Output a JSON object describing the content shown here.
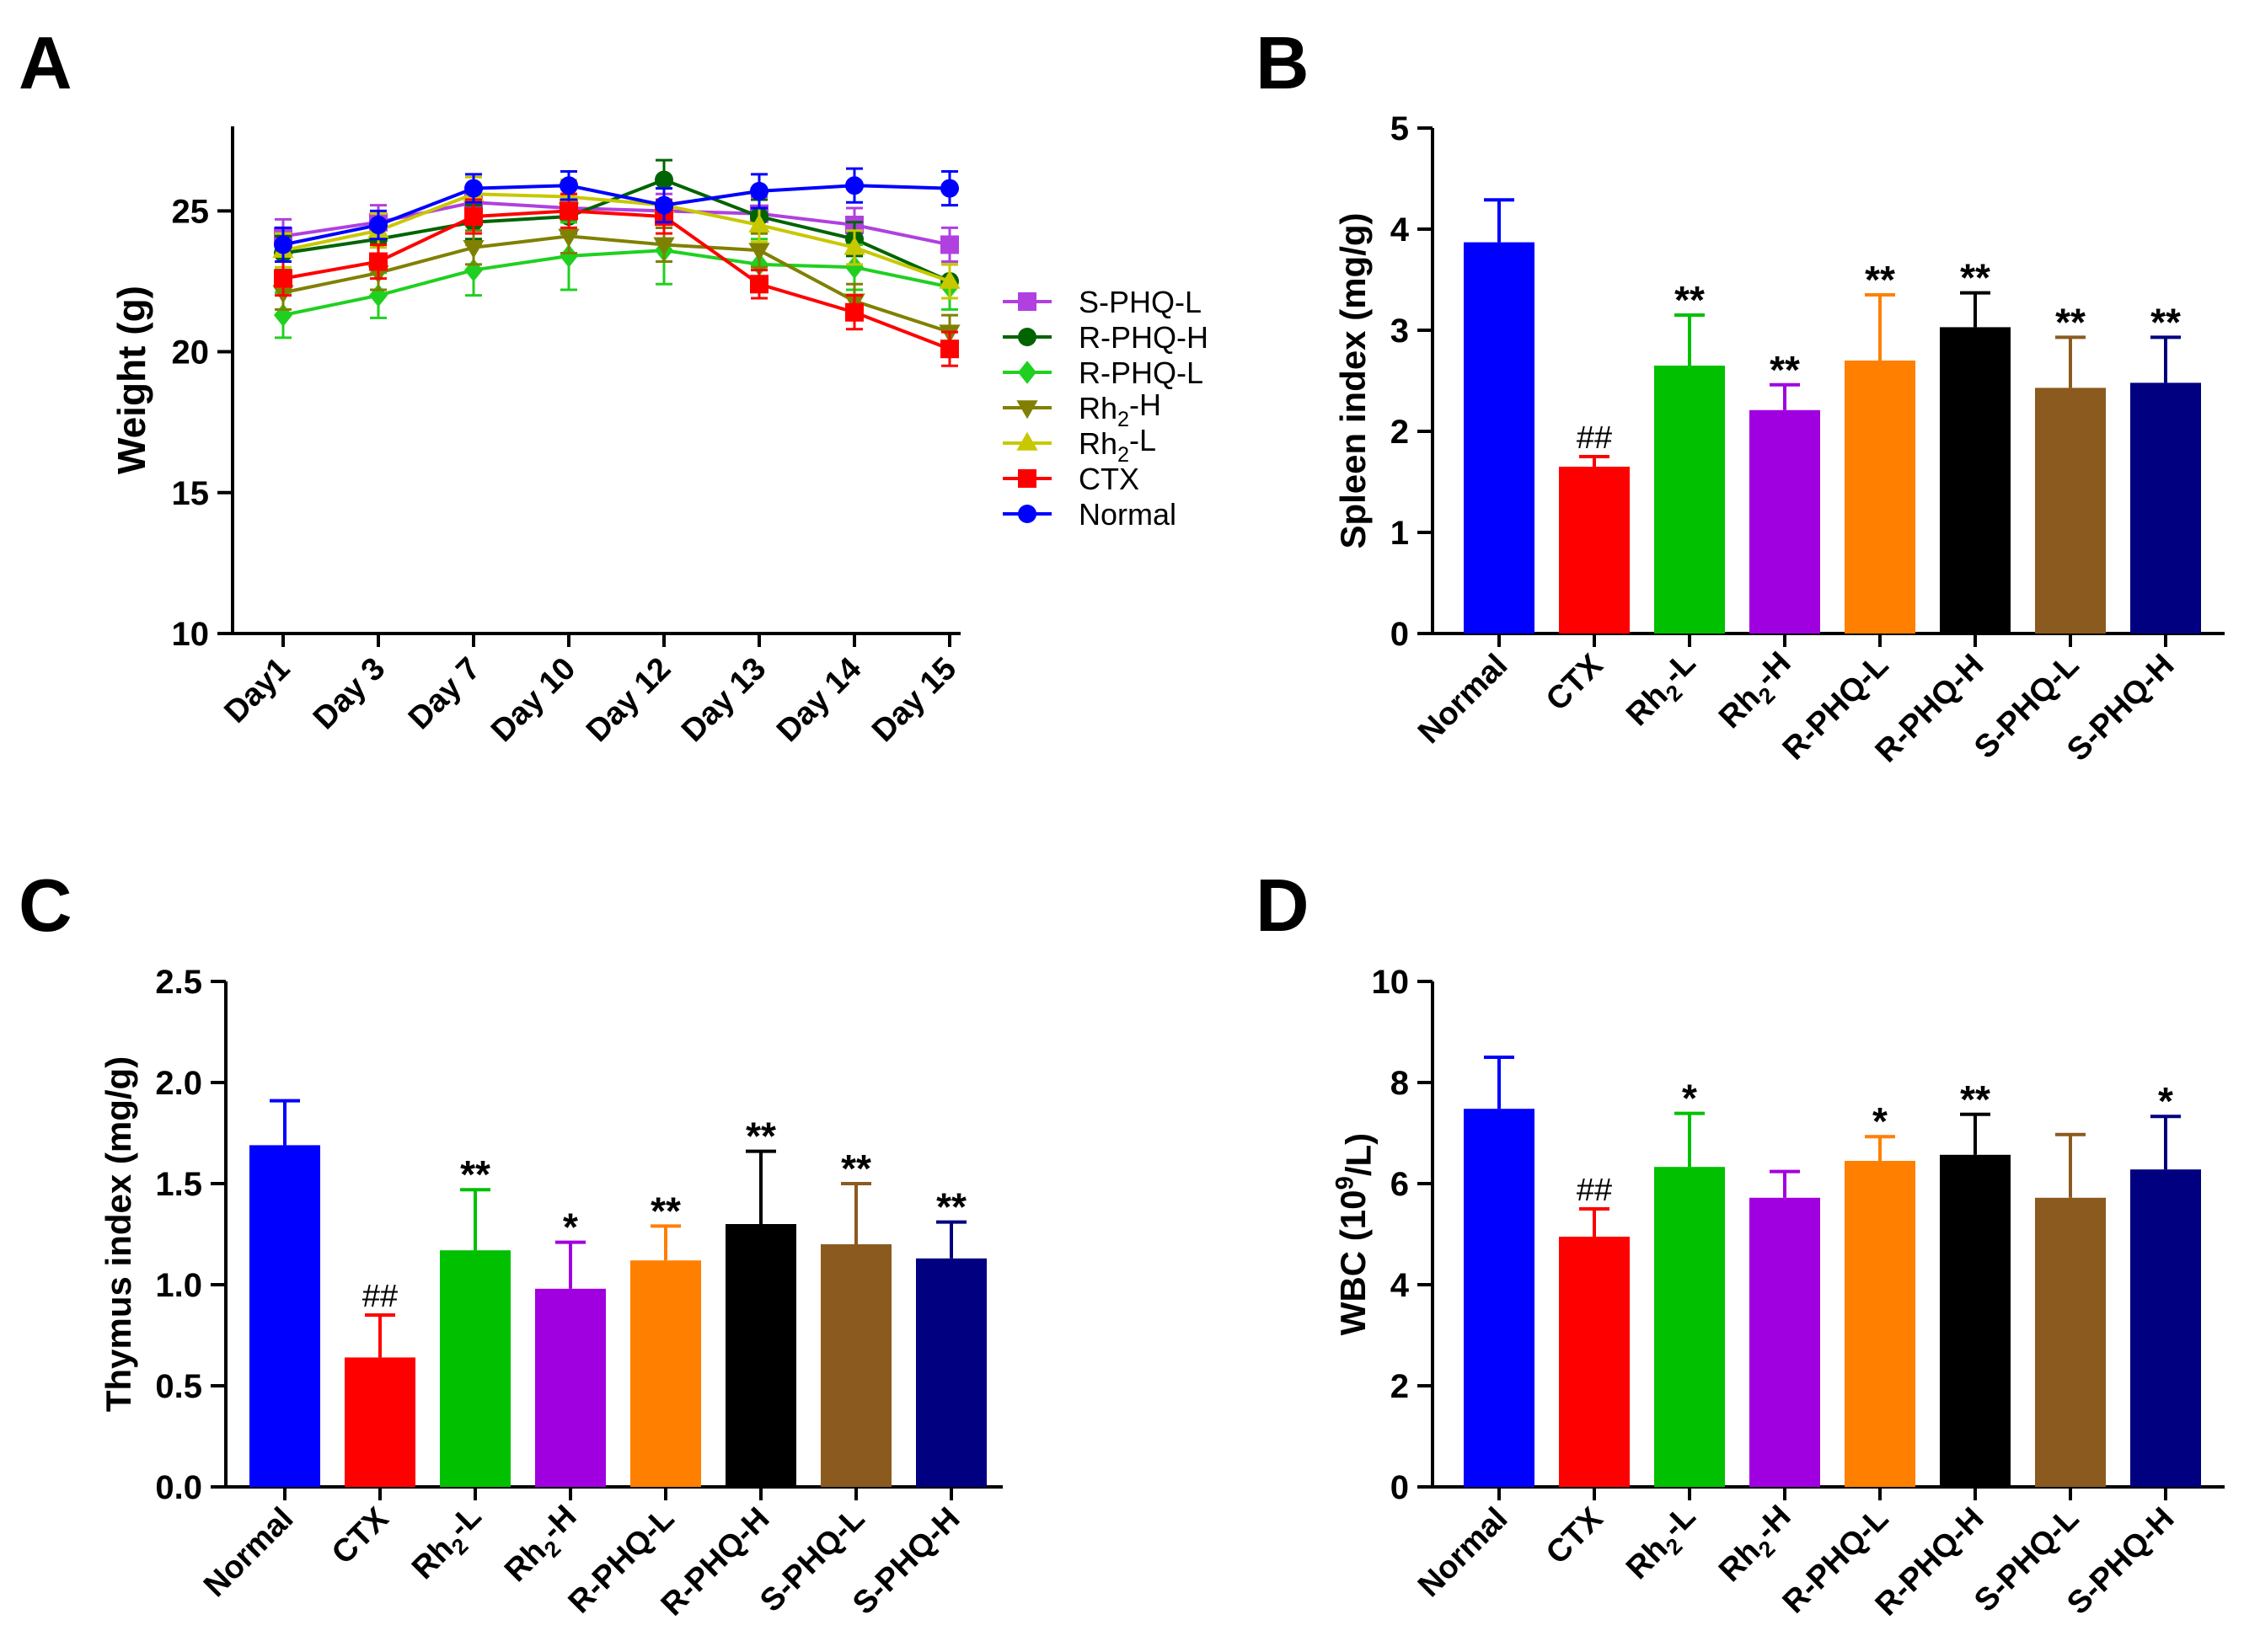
{
  "colors": {
    "Normal": "#0000ff",
    "CTX": "#ff0000",
    "Rh2-L": "#00c000",
    "Rh2-H": "#a000e0",
    "R-PHQ-L": "#ff7f00",
    "R-PHQ-H": "#000000",
    "S-PHQ-L": "#8b5a1e",
    "S-PHQ-H": "#000080",
    "S-PHQ-L-line": "#b040e0",
    "R-PHQ-H-line": "#006400",
    "R-PHQ-L-line": "#20d020",
    "Rh2-H-line": "#808000",
    "Rh2-L-line": "#c8c800",
    "CTX-line": "#ff0000",
    "Normal-line": "#0000ff"
  },
  "categories": [
    {
      "main": "Normal",
      "sub": "",
      "rest": ""
    },
    {
      "main": "CTX",
      "sub": "",
      "rest": ""
    },
    {
      "main": "Rh",
      "sub": "2",
      "rest": "-L"
    },
    {
      "main": "Rh",
      "sub": "2",
      "rest": "-H"
    },
    {
      "main": "R-PHQ-L",
      "sub": "",
      "rest": ""
    },
    {
      "main": "R-PHQ-H",
      "sub": "",
      "rest": ""
    },
    {
      "main": "S-PHQ-L",
      "sub": "",
      "rest": ""
    },
    {
      "main": "S-PHQ-H",
      "sub": "",
      "rest": ""
    }
  ],
  "chart_data": [
    {
      "panel": "A",
      "type": "line",
      "ylabel": "Weight (g)",
      "ylim": [
        10,
        28
      ],
      "yticks": [
        "10",
        "15",
        "20",
        "25"
      ],
      "x": [
        "Day1",
        "Day 3",
        "Day 7",
        "Day 10",
        "Day 12",
        "Day 13",
        "Day 14",
        "Day 15"
      ],
      "legend": [
        {
          "name": "S-PHQ-L",
          "main": "S-PHQ-L",
          "sub": "",
          "rest": ""
        },
        {
          "name": "R-PHQ-H",
          "main": "R-PHQ-H",
          "sub": "",
          "rest": ""
        },
        {
          "name": "R-PHQ-L",
          "main": "R-PHQ-L",
          "sub": "",
          "rest": ""
        },
        {
          "name": "Rh2-H",
          "main": "Rh",
          "sub": "2",
          "rest": "-H"
        },
        {
          "name": "Rh2-L",
          "main": "Rh",
          "sub": "2",
          "rest": "-L"
        },
        {
          "name": "CTX",
          "main": "CTX",
          "sub": "",
          "rest": ""
        },
        {
          "name": "Normal",
          "main": "Normal",
          "sub": "",
          "rest": ""
        }
      ],
      "series": [
        {
          "name": "S-PHQ-L",
          "marker": "square",
          "values": [
            24.1,
            24.6,
            25.3,
            25.1,
            25.0,
            24.9,
            24.5,
            23.8
          ],
          "err": [
            0.6,
            0.6,
            0.5,
            0.5,
            0.6,
            0.6,
            0.6,
            0.6
          ]
        },
        {
          "name": "R-PHQ-H",
          "marker": "circle",
          "values": [
            23.5,
            24.0,
            24.6,
            24.8,
            26.1,
            24.8,
            24.0,
            22.5
          ],
          "err": [
            0.6,
            0.6,
            0.6,
            0.6,
            0.7,
            0.6,
            0.6,
            0.6
          ]
        },
        {
          "name": "R-PHQ-L",
          "marker": "diamond",
          "values": [
            21.3,
            22.0,
            22.9,
            23.4,
            23.6,
            23.1,
            23.0,
            22.3
          ],
          "err": [
            0.8,
            0.8,
            0.9,
            1.2,
            1.2,
            0.9,
            0.8,
            0.8
          ]
        },
        {
          "name": "Rh2-H",
          "marker": "triangle-down",
          "values": [
            22.1,
            22.8,
            23.7,
            24.1,
            23.8,
            23.6,
            21.8,
            20.7
          ],
          "err": [
            0.6,
            0.6,
            0.6,
            0.6,
            0.6,
            0.6,
            0.6,
            0.6
          ]
        },
        {
          "name": "Rh2-L",
          "marker": "triangle-up",
          "values": [
            23.6,
            24.3,
            25.6,
            25.5,
            25.2,
            24.5,
            23.7,
            22.5
          ],
          "err": [
            0.6,
            0.6,
            0.6,
            0.6,
            0.6,
            0.6,
            0.6,
            0.6
          ]
        },
        {
          "name": "CTX",
          "marker": "square",
          "values": [
            22.6,
            23.2,
            24.8,
            25.0,
            24.8,
            22.4,
            21.4,
            20.1
          ],
          "err": [
            0.6,
            0.6,
            0.6,
            0.6,
            0.6,
            0.5,
            0.6,
            0.6
          ]
        },
        {
          "name": "Normal",
          "marker": "circle",
          "values": [
            23.8,
            24.5,
            25.8,
            25.9,
            25.2,
            25.7,
            25.9,
            25.8
          ],
          "err": [
            0.6,
            0.5,
            0.5,
            0.5,
            0.6,
            0.6,
            0.6,
            0.6
          ]
        }
      ]
    },
    {
      "panel": "B",
      "type": "bar",
      "ylabel": "Spleen index (mg/g)",
      "ylim": [
        0,
        5
      ],
      "yticks": [
        "0",
        "1",
        "2",
        "3",
        "4",
        "5"
      ],
      "values": [
        3.87,
        1.65,
        2.65,
        2.21,
        2.7,
        3.03,
        2.43,
        2.48
      ],
      "err": [
        0.42,
        0.1,
        0.5,
        0.25,
        0.65,
        0.34,
        0.5,
        0.45
      ],
      "annotations": [
        "",
        "##",
        "**",
        "**",
        "**",
        "**",
        "**",
        "**"
      ]
    },
    {
      "panel": "C",
      "type": "bar",
      "ylabel": "Thymus index (mg/g)",
      "ylim": [
        0,
        2.5
      ],
      "yticks": [
        "0.0",
        "0.5",
        "1.0",
        "1.5",
        "2.0",
        "2.5"
      ],
      "values": [
        1.69,
        0.64,
        1.17,
        0.98,
        1.12,
        1.3,
        1.2,
        1.13
      ],
      "err": [
        0.22,
        0.21,
        0.3,
        0.23,
        0.17,
        0.36,
        0.3,
        0.18
      ],
      "annotations": [
        "",
        "##",
        "**",
        "*",
        "**",
        "**",
        "**",
        "**"
      ]
    },
    {
      "panel": "D",
      "type": "bar",
      "ylabel_main": "WBC (10",
      "ylabel_sup": "9",
      "ylabel_rest": "/L)",
      "ylim": [
        0,
        10
      ],
      "yticks": [
        "0",
        "2",
        "4",
        "6",
        "8",
        "10"
      ],
      "values": [
        7.48,
        4.95,
        6.33,
        5.72,
        6.45,
        6.57,
        5.72,
        6.28
      ],
      "err": [
        1.02,
        0.55,
        1.06,
        0.52,
        0.48,
        0.8,
        1.25,
        1.05
      ],
      "annotations": [
        "",
        "##",
        "*",
        "",
        "*",
        "**",
        "",
        "*"
      ]
    }
  ]
}
